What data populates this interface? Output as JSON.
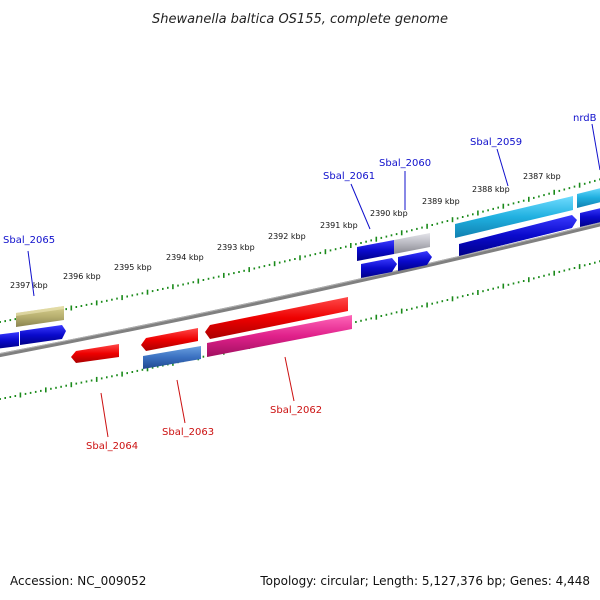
{
  "title": "Shewanella baltica OS155, complete genome",
  "footer": {
    "accession": "Accession: NC_009052",
    "summary": "Topology: circular; Length: 5,127,376 bp; Genes: 4,448"
  },
  "colors": {
    "backbone": "#808080",
    "tick": "#1a8a1a",
    "forward_label": "#1010cc",
    "reverse_label": "#cc1111"
  },
  "scale_labels": [
    "2397 kbp",
    "2396 kbp",
    "2395 kbp",
    "2394 kbp",
    "2393 kbp",
    "2392 kbp",
    "2391 kbp",
    "2390 kbp",
    "2389 kbp",
    "2388 kbp",
    "2387 kbp"
  ],
  "forward_genes": [
    {
      "label": "Sbal_2065",
      "color": "#b8b070"
    },
    {
      "label": "Sbal_2061",
      "color": "#0a0acc"
    },
    {
      "label": "Sbal_2060",
      "color": "#b8b8c0"
    },
    {
      "label": "Sbal_2059",
      "color": "#20b0e0"
    },
    {
      "label": "nrdB",
      "color": "#20b0e0"
    }
  ],
  "reverse_genes": [
    {
      "label": "Sbal_2064",
      "color": "#ee0000"
    },
    {
      "label": "Sbal_2063",
      "color": "#ee0000"
    },
    {
      "label": "Sbal_2062",
      "color": "#ee0000"
    }
  ]
}
